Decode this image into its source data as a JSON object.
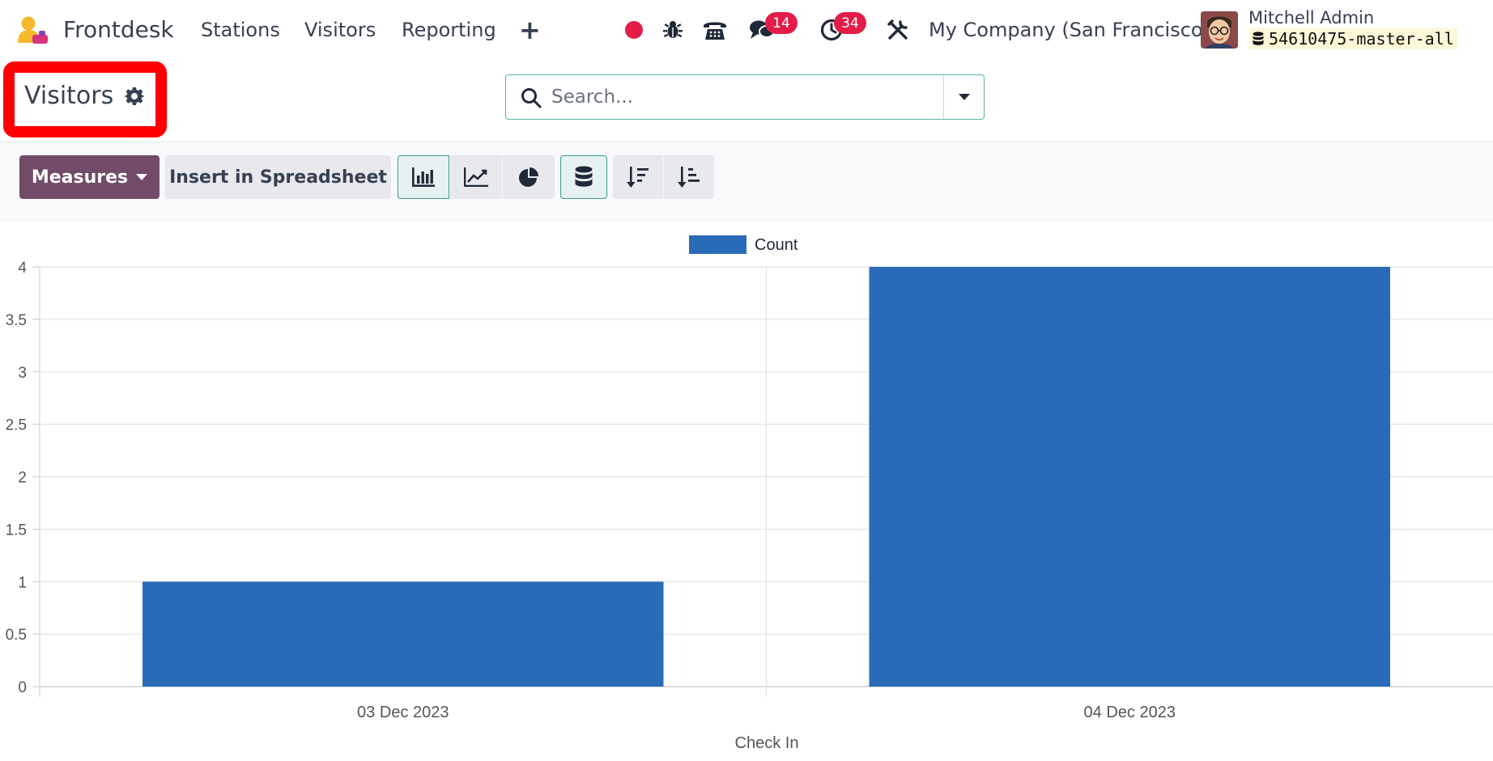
{
  "navbar": {
    "app_name": "Frontdesk",
    "menu": [
      "Stations",
      "Visitors",
      "Reporting"
    ],
    "messages_badge": "14",
    "activities_badge": "34",
    "company": "My Company (San Francisco)",
    "user_name": "Mitchell Admin",
    "db_name": "54610475-master-all",
    "icons": [
      "record-icon",
      "bug-icon",
      "phone-icon",
      "chat-icon",
      "clock-icon",
      "tools-icon"
    ]
  },
  "control_panel": {
    "breadcrumb": "Visitors",
    "search_placeholder": "Search...",
    "measures_label": "Measures",
    "spreadsheet_label": "Insert in Spreadsheet"
  },
  "colors": {
    "brand": "#714b67",
    "bar": "#2a6bb8",
    "badge": "#e11d48",
    "record": "#e11d48",
    "highlight": "#ff0000"
  },
  "chart_data": {
    "type": "bar",
    "categories": [
      "03 Dec 2023",
      "04 Dec 2023"
    ],
    "series": [
      {
        "name": "Count",
        "values": [
          1,
          4
        ]
      }
    ],
    "xlabel": "Check In",
    "ylabel": "",
    "ylim": [
      0,
      4
    ],
    "yticks": [
      "0",
      "0.5",
      "1",
      "1.5",
      "2",
      "2.5",
      "3",
      "3.5",
      "4"
    ],
    "grid": true,
    "legend": "top-center"
  }
}
